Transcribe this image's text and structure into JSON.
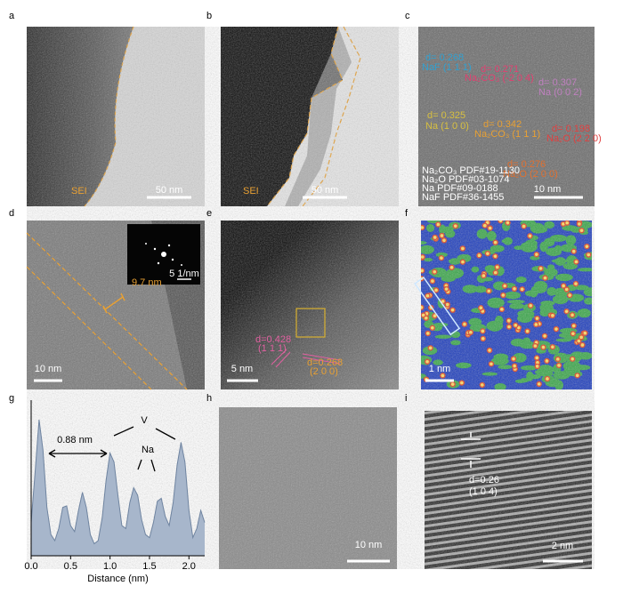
{
  "panels": {
    "a": {
      "label": "a",
      "texts": [
        "SEI",
        "50 nm"
      ]
    },
    "b": {
      "label": "b",
      "texts": [
        "SEI",
        "50 nm"
      ]
    },
    "c": {
      "label": "c",
      "texts": [
        "d= 0.268",
        "NaF (1 1 1)",
        "d= 0.271",
        "Na₂CO₃ (-2 0 4)",
        "d= 0.307",
        "Na (0 0 2)",
        "d= 0.325",
        "Na (1 0 0)",
        "d= 0.342",
        "Na₂CO₃ (1 1 1)",
        "d= 0.198",
        "Na₂O (2 2 0)",
        "d= 0.276",
        "Na₂O (2 0 0)",
        "Na₂CO₃  PDF#19-1130",
        "Na₂O    PDF#03-1074",
        "Na      PDF#09-0188",
        "NaF     PDF#36-1455",
        "10 nm"
      ]
    },
    "d": {
      "label": "d",
      "texts": [
        "5 1/nm",
        "9.7 nm",
        "10 nm"
      ]
    },
    "e": {
      "label": "e",
      "texts": [
        "d=0.428",
        "(1 1 1)",
        "d=0.268",
        "(2 0 0)",
        "5 nm"
      ]
    },
    "f": {
      "label": "f",
      "texts": [
        "1 nm"
      ]
    },
    "g": {
      "label": "g",
      "texts": [
        "0.88 nm",
        "V",
        "Na"
      ]
    },
    "h": {
      "label": "h",
      "texts": [
        "10 nm"
      ]
    },
    "i": {
      "label": "i",
      "texts": [
        "d=0.26",
        "(1 0 4)",
        "2 nm"
      ]
    }
  },
  "chart_data": {
    "type": "area",
    "x_label": "Distance (nm)",
    "color": "#a7b6cb",
    "x": [
      0,
      0.05,
      0.1,
      0.15,
      0.2,
      0.25,
      0.3,
      0.35,
      0.4,
      0.45,
      0.5,
      0.55,
      0.6,
      0.65,
      0.7,
      0.75,
      0.8,
      0.85,
      0.9,
      0.95,
      1.0,
      1.05,
      1.1,
      1.15,
      1.2,
      1.25,
      1.3,
      1.35,
      1.4,
      1.45,
      1.5,
      1.55,
      1.6,
      1.65,
      1.7,
      1.75,
      1.8,
      1.85,
      1.9,
      1.95,
      2.0,
      2.05,
      2.1,
      2.15,
      2.2
    ],
    "values": [
      0.22,
      0.55,
      0.9,
      0.7,
      0.32,
      0.14,
      0.1,
      0.18,
      0.32,
      0.33,
      0.2,
      0.16,
      0.3,
      0.42,
      0.32,
      0.14,
      0.08,
      0.1,
      0.25,
      0.5,
      0.68,
      0.62,
      0.4,
      0.2,
      0.18,
      0.35,
      0.45,
      0.4,
      0.24,
      0.14,
      0.12,
      0.22,
      0.36,
      0.38,
      0.26,
      0.2,
      0.35,
      0.6,
      0.75,
      0.62,
      0.3,
      0.12,
      0.18,
      0.3,
      0.22
    ],
    "xlim": [
      0,
      2.2
    ],
    "ylim": [
      0,
      1
    ],
    "xticks": [
      {
        "value": 0,
        "label": "0.0"
      },
      {
        "value": 0.5,
        "label": "0.5"
      },
      {
        "value": 1,
        "label": "1.0"
      },
      {
        "value": 1.5,
        "label": "1.5"
      },
      {
        "value": 2,
        "label": "2.0"
      }
    ]
  }
}
